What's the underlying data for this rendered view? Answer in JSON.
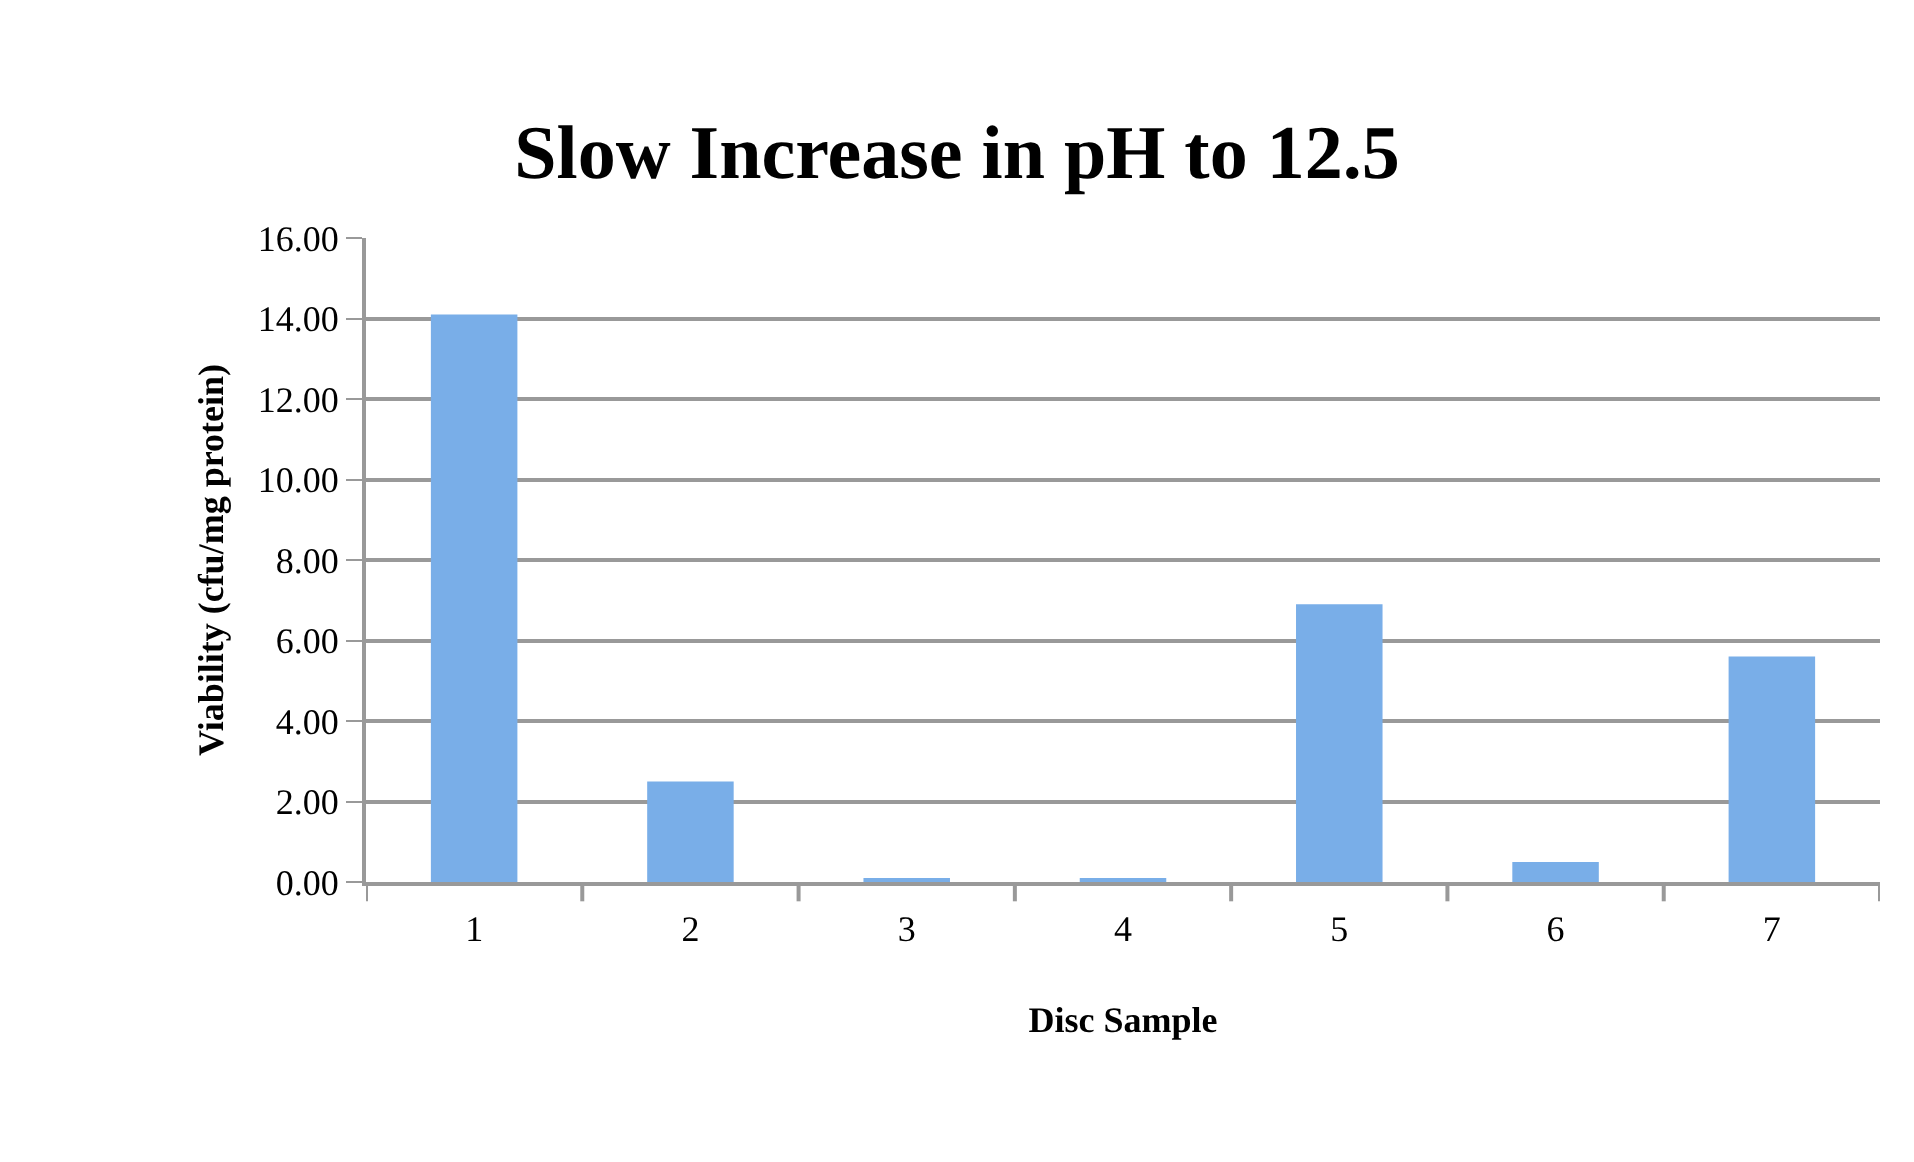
{
  "chart_data": {
    "type": "bar",
    "title": "Slow Increase in pH to 12.5",
    "xlabel": "Disc Sample",
    "ylabel": "Viability (cfu/mg protein)",
    "categories": [
      "1",
      "2",
      "3",
      "4",
      "5",
      "6",
      "7"
    ],
    "values": [
      14.1,
      2.5,
      0.1,
      0.1,
      6.9,
      0.5,
      5.6
    ],
    "color": "#79aee8",
    "ylim": [
      0,
      16
    ],
    "yticks": [
      {
        "value": 0,
        "label": "0.00"
      },
      {
        "value": 2,
        "label": "2.00"
      },
      {
        "value": 4,
        "label": "4.00"
      },
      {
        "value": 6,
        "label": "6.00"
      },
      {
        "value": 8,
        "label": "8.00"
      },
      {
        "value": 10,
        "label": "10.00"
      },
      {
        "value": 12,
        "label": "12.00"
      },
      {
        "value": 14,
        "label": "14.00"
      },
      {
        "value": 16,
        "label": "16.00"
      }
    ],
    "grid": "y",
    "legend": false
  }
}
